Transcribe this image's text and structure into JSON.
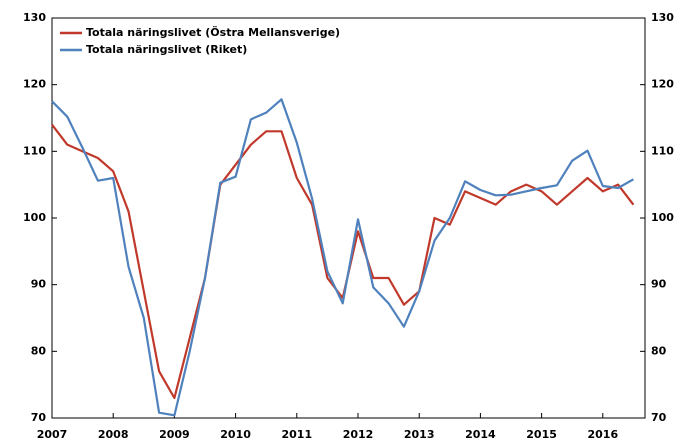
{
  "chart_data": {
    "type": "line",
    "categories": [
      "2007",
      null,
      null,
      null,
      "2008",
      null,
      null,
      null,
      "2009",
      null,
      null,
      null,
      "2010",
      null,
      null,
      null,
      "2011",
      null,
      null,
      null,
      "2012",
      null,
      null,
      null,
      "2013",
      null,
      null,
      null,
      "2014",
      null,
      null,
      null,
      "2015",
      null,
      null,
      null,
      "2016",
      null,
      null
    ],
    "series": [
      {
        "name": "Totala näringslivet (Östra Mellansverige)",
        "color": "#c0392b",
        "values": [
          114,
          111,
          110,
          109,
          107,
          101,
          89,
          77,
          73,
          82,
          91,
          105,
          108,
          111,
          113,
          113,
          106,
          102,
          91,
          88,
          98,
          91,
          91,
          87,
          89,
          100,
          99,
          104,
          103,
          102,
          104,
          105,
          104,
          102,
          104,
          106,
          104,
          105,
          102
        ]
      },
      {
        "name": "Totala näringslivet (Riket)",
        "color": "#4f81bd",
        "values": [
          117.5,
          115.2,
          110.5,
          105.6,
          106,
          92.7,
          85,
          70.8,
          70.4,
          80,
          91,
          105.3,
          106.2,
          114.8,
          115.8,
          117.8,
          111.3,
          102.9,
          92,
          87.2,
          99.8,
          89.6,
          87.2,
          83.7,
          89,
          96.6,
          100,
          105.5,
          104.2,
          103.4,
          103.5,
          104,
          104.5,
          104.9,
          108.6,
          110.1,
          104.8,
          104.5,
          105.8
        ]
      }
    ],
    "ylim": [
      70,
      130
    ],
    "yticks": [
      70,
      80,
      90,
      100,
      110,
      120,
      130
    ],
    "y2lim": [
      70,
      130
    ],
    "y2ticks": [
      70,
      80,
      90,
      100,
      110,
      120,
      130
    ],
    "legend": "top-left"
  }
}
